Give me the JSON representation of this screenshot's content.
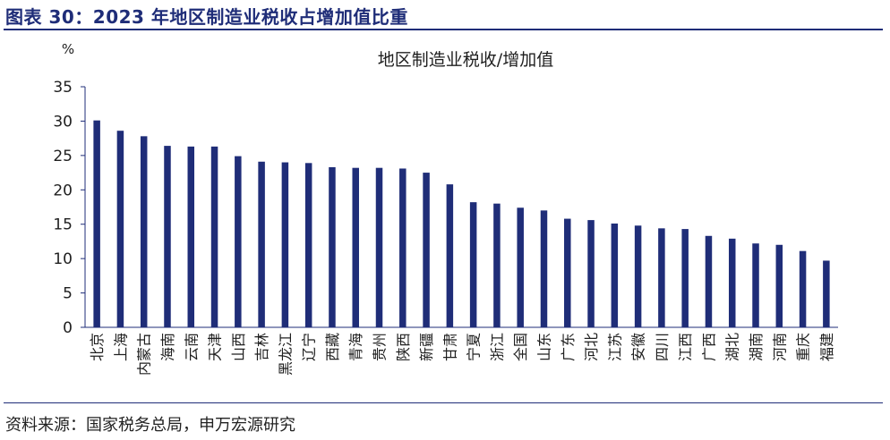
{
  "figure": {
    "title": "图表 30：2023 年地区制造业税收占增加值比重",
    "source": "资料来源：国家税务总局，申万宏源研究"
  },
  "colors": {
    "bar": "#1f2d78",
    "title": "#1f2d78",
    "axis": "#1f2d78"
  },
  "chart_data": {
    "type": "bar",
    "title": "地区制造业税收/增加值",
    "ylabel": "%",
    "xlabel": "",
    "ylim": [
      0,
      35
    ],
    "yticks": [
      0,
      5,
      10,
      15,
      20,
      25,
      30,
      35
    ],
    "grid": false,
    "legend": "none",
    "categories": [
      "北京",
      "上海",
      "内蒙古",
      "海南",
      "云南",
      "天津",
      "山西",
      "吉林",
      "黑龙江",
      "辽宁",
      "西藏",
      "青海",
      "贵州",
      "陕西",
      "新疆",
      "甘肃",
      "宁夏",
      "浙江",
      "全国",
      "山东",
      "广东",
      "河北",
      "江苏",
      "安徽",
      "四川",
      "江西",
      "广西",
      "湖北",
      "湖南",
      "河南",
      "重庆",
      "福建"
    ],
    "values": [
      30.1,
      28.6,
      27.8,
      26.4,
      26.3,
      26.3,
      24.9,
      24.1,
      24.0,
      23.9,
      23.3,
      23.2,
      23.2,
      23.1,
      22.5,
      20.8,
      18.2,
      18.0,
      17.4,
      17.0,
      15.8,
      15.6,
      15.1,
      14.8,
      14.4,
      14.3,
      13.3,
      12.9,
      12.2,
      12.0,
      11.1,
      9.7
    ]
  }
}
